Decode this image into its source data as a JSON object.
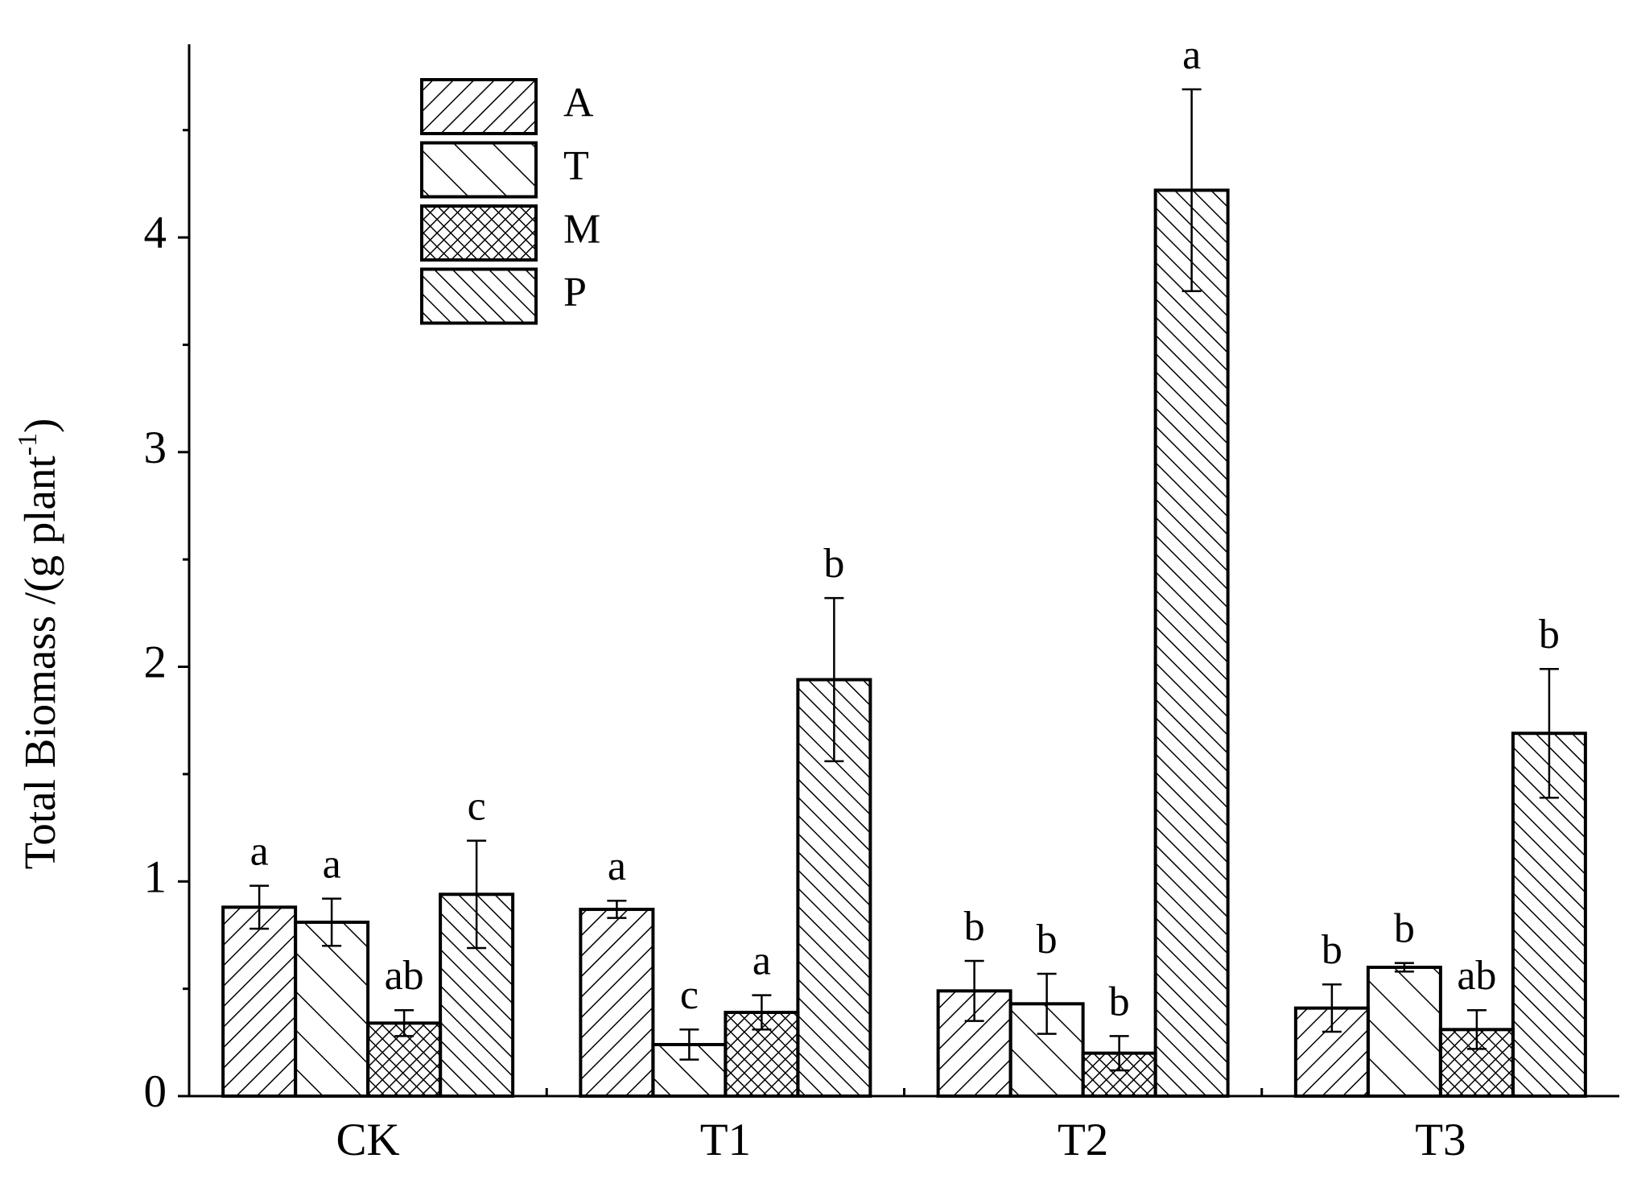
{
  "chart_data": {
    "type": "bar",
    "y_label": {
      "text": "Total Biomass /(g plant",
      "superscript": "-1",
      "close": ")"
    },
    "categories": [
      "CK",
      "T1",
      "T2",
      "T3"
    ],
    "series": [
      {
        "name": "A",
        "color": "#000000",
        "pattern": "forward-diagonal",
        "values": [
          0.88,
          0.87,
          0.49,
          0.41
        ],
        "errors": [
          0.1,
          0.04,
          0.14,
          0.11
        ],
        "letters": [
          "a",
          "a",
          "b",
          "b"
        ]
      },
      {
        "name": "T",
        "color": "#000000",
        "pattern": "back-diagonal-wide",
        "values": [
          0.81,
          0.24,
          0.43,
          0.6
        ],
        "errors": [
          0.11,
          0.07,
          0.14,
          0.02
        ],
        "letters": [
          "a",
          "c",
          "b",
          "b"
        ]
      },
      {
        "name": "M",
        "color": "#000000",
        "pattern": "crosshatch",
        "values": [
          0.34,
          0.39,
          0.2,
          0.31
        ],
        "errors": [
          0.06,
          0.08,
          0.08,
          0.09
        ],
        "letters": [
          "ab",
          "a",
          "b",
          "ab"
        ]
      },
      {
        "name": "P",
        "color": "#000000",
        "pattern": "back-diagonal",
        "values": [
          0.94,
          1.94,
          4.22,
          1.69
        ],
        "errors": [
          0.25,
          0.38,
          0.47,
          0.3
        ],
        "letters": [
          "c",
          "b",
          "a",
          "b"
        ]
      }
    ],
    "ylim": [
      0,
      4.9
    ],
    "yticks": [
      0,
      1,
      2,
      3,
      4
    ],
    "y_minor_ticks": [
      0.5,
      1.5,
      2.5,
      3.5,
      4.5
    ],
    "legend": "top-left",
    "grid": false
  }
}
